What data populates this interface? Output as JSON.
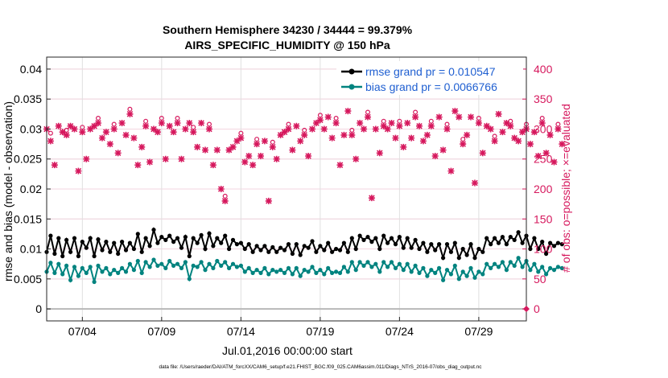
{
  "chart_data": {
    "type": "line",
    "title_line1": "Southern Hemisphere 34230 / 34444 = 99.379%",
    "title_line2": "AIRS_SPECIFIC_HUMIDITY @ 150 hPa",
    "xlabel": "Jul.01,2016 00:00:00 start",
    "ylabel_left": "rmse and bias (model - observation)",
    "ylabel_right": "# of obs: o=possible; ×=evaluated",
    "footer": "data file: /Users/raeder/DAI/ATM_forcXX/CAM6_setup/f.e21.FHIST_BGC.f09_025.CAM6assim.011/Diags_NTrS_2016-07/obs_diag_output.nc",
    "x_range_days": [
      1.75,
      32.0
    ],
    "x_ticks": [
      {
        "day": 4,
        "label": "07/04"
      },
      {
        "day": 9,
        "label": "07/09"
      },
      {
        "day": 14,
        "label": "07/14"
      },
      {
        "day": 19,
        "label": "07/19"
      },
      {
        "day": 24,
        "label": "07/24"
      },
      {
        "day": 29,
        "label": "07/29"
      }
    ],
    "ylim_left": [
      -0.002,
      0.042
    ],
    "yticks_left": [
      "0",
      "0.005",
      "0.01",
      "0.015",
      "0.02",
      "0.025",
      "0.03",
      "0.035",
      "0.04"
    ],
    "ytick_values_left": [
      0,
      0.005,
      0.01,
      0.015,
      0.02,
      0.025,
      0.03,
      0.035,
      0.04
    ],
    "ylim_right": [
      -20,
      420
    ],
    "yticks_right": [
      "0",
      "50",
      "100",
      "150",
      "200",
      "250",
      "300",
      "350",
      "400"
    ],
    "ytick_values_right": [
      0,
      50,
      100,
      150,
      200,
      250,
      300,
      350,
      400
    ],
    "legend_position": "top-right",
    "series": [
      {
        "name": "rmse grand pr = 0.010547",
        "axis": "left",
        "color": "#000000",
        "values": [
          0.0095,
          0.0122,
          0.0092,
          0.0118,
          0.0088,
          0.0115,
          0.0095,
          0.0118,
          0.0088,
          0.0112,
          0.0102,
          0.0118,
          0.0088,
          0.0116,
          0.0098,
          0.0112,
          0.0095,
          0.011,
          0.0092,
          0.0112,
          0.0098,
          0.011,
          0.01,
          0.0125,
          0.0095,
          0.0118,
          0.0105,
          0.0132,
          0.011,
          0.012,
          0.0115,
          0.0122,
          0.0112,
          0.0118,
          0.0102,
          0.012,
          0.0088,
          0.0118,
          0.011,
          0.0123,
          0.01,
          0.0126,
          0.0105,
          0.0118,
          0.011,
          0.0122,
          0.01,
          0.0115,
          0.0108,
          0.011,
          0.01,
          0.0108,
          0.0095,
          0.0105,
          0.0098,
          0.0105,
          0.0095,
          0.0103,
          0.0095,
          0.0102,
          0.0098,
          0.0108,
          0.0092,
          0.0108,
          0.009,
          0.0105,
          0.0102,
          0.0113,
          0.0095,
          0.0105,
          0.0098,
          0.011,
          0.0095,
          0.01,
          0.0098,
          0.011,
          0.0095,
          0.0118,
          0.01,
          0.0122,
          0.0115,
          0.012,
          0.0112,
          0.0118,
          0.01,
          0.0122,
          0.011,
          0.0118,
          0.0108,
          0.012,
          0.0102,
          0.0118,
          0.0102,
          0.0115,
          0.01,
          0.011,
          0.0095,
          0.0108,
          0.0098,
          0.0108,
          0.0085,
          0.0108,
          0.0095,
          0.011,
          0.0085,
          0.01,
          0.009,
          0.0108,
          0.0085,
          0.01,
          0.0095,
          0.0118,
          0.0108,
          0.0118,
          0.011,
          0.012,
          0.0108,
          0.012,
          0.0115,
          0.0128,
          0.011,
          0.0122,
          0.01,
          0.0118,
          0.01,
          0.0112,
          0.0092,
          0.011,
          0.0105,
          0.011,
          0.0108
        ]
      },
      {
        "name": "bias grand pr = 0.0066766",
        "axis": "left",
        "color": "#00837f",
        "values": [
          0.0062,
          0.0077,
          0.006,
          0.0075,
          0.0058,
          0.0072,
          0.0048,
          0.007,
          0.0055,
          0.0068,
          0.006,
          0.007,
          0.0045,
          0.0072,
          0.0062,
          0.0068,
          0.0058,
          0.0065,
          0.006,
          0.0068,
          0.0062,
          0.0075,
          0.0065,
          0.008,
          0.006,
          0.0078,
          0.007,
          0.0082,
          0.0072,
          0.0075,
          0.0068,
          0.008,
          0.0072,
          0.0075,
          0.0068,
          0.0078,
          0.005,
          0.0072,
          0.007,
          0.0078,
          0.0065,
          0.0075,
          0.0068,
          0.008,
          0.0072,
          0.0078,
          0.0068,
          0.0075,
          0.007,
          0.0072,
          0.0062,
          0.0068,
          0.006,
          0.0065,
          0.006,
          0.0068,
          0.0058,
          0.0065,
          0.0062,
          0.0065,
          0.006,
          0.0068,
          0.0058,
          0.0068,
          0.0055,
          0.0065,
          0.0062,
          0.007,
          0.006,
          0.0065,
          0.0058,
          0.0068,
          0.006,
          0.0062,
          0.006,
          0.007,
          0.0062,
          0.0078,
          0.0065,
          0.0078,
          0.0072,
          0.0078,
          0.007,
          0.0075,
          0.0062,
          0.0078,
          0.007,
          0.0078,
          0.0068,
          0.0075,
          0.0065,
          0.0075,
          0.0062,
          0.0072,
          0.006,
          0.0068,
          0.0055,
          0.0065,
          0.006,
          0.0068,
          0.0048,
          0.0065,
          0.0058,
          0.0072,
          0.005,
          0.0062,
          0.0055,
          0.0068,
          0.0052,
          0.0062,
          0.0058,
          0.0075,
          0.0068,
          0.0075,
          0.007,
          0.0078,
          0.0065,
          0.0078,
          0.0072,
          0.0085,
          0.007,
          0.008,
          0.0065,
          0.0075,
          0.0062,
          0.007,
          0.0058,
          0.0068,
          0.0065,
          0.007,
          0.0068
        ]
      },
      {
        "name": "obs evaluated",
        "axis": "right",
        "color": "#d6185d",
        "values": [
          300,
          280,
          240,
          305,
          295,
          290,
          305,
          300,
          230,
          295,
          250,
          300,
          305,
          310,
          285,
          295,
          275,
          300,
          260,
          310,
          290,
          325,
          285,
          240,
          270,
          305,
          245,
          300,
          295,
          310,
          250,
          305,
          295,
          310,
          250,
          300,
          310,
          295,
          270,
          310,
          265,
          300,
          240,
          265,
          200,
          180,
          265,
          270,
          280,
          285,
          245,
          255,
          240,
          275,
          255,
          280,
          180,
          270,
          250,
          290,
          295,
          300,
          265,
          305,
          280,
          290,
          255,
          300,
          310,
          315,
          300,
          320,
          285,
          310,
          240,
          290,
          330,
          290,
          250,
          310,
          300,
          320,
          185,
          300,
          260,
          305,
          300,
          310,
          285,
          305,
          270,
          310,
          285,
          320,
          305,
          280,
          290,
          305,
          255,
          320,
          265,
          300,
          230,
          330,
          320,
          275,
          290,
          320,
          210,
          310,
          260,
          305,
          300,
          280,
          325,
          295,
          310,
          305,
          285,
          280,
          295,
          300,
          275,
          295,
          255,
          310,
          260,
          290,
          245,
          300,
          275
        ]
      },
      {
        "name": "obs possible",
        "axis": "right",
        "color": "#d6185d",
        "values": [
          300,
          285,
          240,
          305,
          315,
          290,
          305,
          300,
          230,
          295,
          250,
          300,
          305,
          310,
          285,
          295,
          275,
          300,
          260,
          310,
          290,
          325,
          285,
          240,
          270,
          305,
          245,
          300,
          295,
          310,
          250,
          305,
          310,
          310,
          250,
          300,
          310,
          295,
          270,
          310,
          265,
          300,
          240,
          265,
          200,
          180,
          265,
          270,
          280,
          285,
          245,
          255,
          240,
          275,
          255,
          280,
          180,
          270,
          250,
          290,
          295,
          300,
          265,
          305,
          280,
          290,
          255,
          300,
          310,
          315,
          300,
          320,
          285,
          310,
          240,
          290,
          330,
          290,
          250,
          310,
          300,
          320,
          185,
          300,
          260,
          305,
          300,
          310,
          285,
          305,
          270,
          310,
          285,
          320,
          305,
          280,
          290,
          305,
          255,
          320,
          265,
          300,
          230,
          330,
          320,
          275,
          290,
          320,
          210,
          310,
          260,
          305,
          300,
          280,
          325,
          295,
          310,
          305,
          285,
          280,
          295,
          300,
          275,
          295,
          255,
          310,
          260,
          290,
          245,
          300,
          275
        ]
      }
    ]
  }
}
